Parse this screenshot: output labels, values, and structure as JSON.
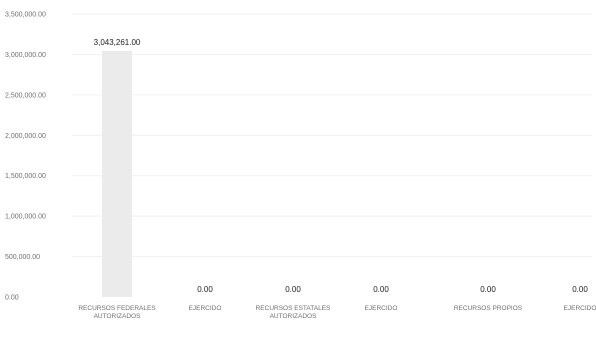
{
  "chart_data": {
    "type": "bar",
    "categories": [
      [
        "RECURSOS FEDERALES",
        "AUTORIZADOS"
      ],
      [
        "EJERCIDO"
      ],
      [
        "RECURSOS ESTATALES",
        "AUTORIZADOS"
      ],
      [
        "EJERCIDO"
      ],
      [
        "RECURSOS PROPIOS"
      ],
      [
        "EJERCIDO"
      ]
    ],
    "values": [
      3043261,
      0,
      0,
      0,
      0,
      0
    ],
    "data_labels": [
      "3,043,261.00",
      "0.00",
      "0.00",
      "0.00",
      "0.00",
      "0.00"
    ],
    "y_ticks": [
      {
        "value": 0,
        "label": "0.00"
      },
      {
        "value": 500000,
        "label": "500,000.00"
      },
      {
        "value": 1000000,
        "label": "1,000,000.00"
      },
      {
        "value": 1500000,
        "label": "1,500,000.00"
      },
      {
        "value": 2000000,
        "label": "2,000,000.00"
      },
      {
        "value": 2500000,
        "label": "2,500,000.00"
      },
      {
        "value": 3000000,
        "label": "3,000,000.00"
      },
      {
        "value": 3500000,
        "label": "3,500,000.00"
      }
    ],
    "ylim": [
      0,
      3500000
    ],
    "title": "",
    "xlabel": "",
    "ylabel": "",
    "grid": true,
    "legend": "none",
    "bar_color": "#ebebeb",
    "gridline_color": "#f1f1f1",
    "tick_label_color": "#6f6f6f",
    "data_label_color": "#222222"
  }
}
